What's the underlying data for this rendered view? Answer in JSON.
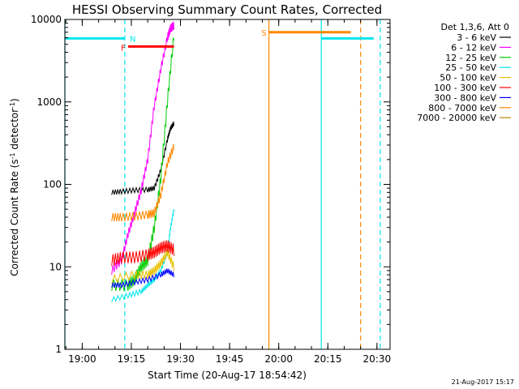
{
  "chart_data": {
    "type": "line",
    "title": "HESSI Observing Summary Count Rates, Corrected",
    "xlabel": "Start Time (20-Aug-17 18:54:42)",
    "ylabel_parts": [
      "Corrected Count Rate (s",
      "-1",
      " detector",
      "-1",
      ")"
    ],
    "yscale": "log",
    "xlim": [
      "18:54:42",
      "20:34:00"
    ],
    "ylim": [
      1,
      10000
    ],
    "x_ticks": [
      "19:00",
      "19:15",
      "19:30",
      "19:45",
      "20:00",
      "20:15",
      "20:30"
    ],
    "y_ticks": [
      "1",
      "10",
      "100",
      "1000",
      "10000"
    ],
    "legend_title": "Det 1,3,6, Att 0",
    "legend_placement": "right, outside plot",
    "series": [
      {
        "name": "3 - 6 keV",
        "color": "#000000",
        "time": [
          "19:09",
          "19:12",
          "19:16",
          "19:20",
          "19:22",
          "19:24",
          "19:26",
          "19:27",
          "19:28"
        ],
        "values": [
          80,
          82,
          85,
          86,
          90,
          150,
          350,
          480,
          550
        ]
      },
      {
        "name": "6 - 12 keV",
        "color": "#ff00ff",
        "time": [
          "19:09",
          "19:12",
          "19:14",
          "19:16",
          "19:18",
          "19:20",
          "19:22",
          "19:24",
          "19:26",
          "19:27",
          "19:28"
        ],
        "values": [
          9,
          12,
          25,
          45,
          85,
          200,
          900,
          2500,
          6000,
          7800,
          8500
        ]
      },
      {
        "name": "12 - 25 keV",
        "color": "#00cc00",
        "time": [
          "19:09",
          "19:14",
          "19:16",
          "19:18",
          "19:20",
          "19:22",
          "19:24",
          "19:26",
          "19:28"
        ],
        "values": [
          6,
          6,
          7,
          10,
          12,
          30,
          120,
          1000,
          6500
        ]
      },
      {
        "name": "25 - 50 keV",
        "color": "#00e5ee",
        "time": [
          "19:09",
          "19:14",
          "19:18",
          "19:20",
          "19:22",
          "19:24",
          "19:26",
          "19:27",
          "19:28"
        ],
        "values": [
          4,
          4.5,
          5,
          6,
          7,
          9,
          15,
          30,
          50
        ]
      },
      {
        "name": "50 - 100 keV",
        "color": "#e8c000",
        "time": [
          "19:09",
          "19:16",
          "19:20",
          "19:22",
          "19:24",
          "19:26",
          "19:28"
        ],
        "values": [
          7,
          8,
          8,
          9,
          11,
          15,
          10
        ]
      },
      {
        "name": "100 - 300 keV",
        "color": "#ff0000",
        "time": [
          "19:09",
          "19:12",
          "19:16",
          "19:20",
          "19:22",
          "19:24",
          "19:26",
          "19:28"
        ],
        "values": [
          12,
          13,
          13,
          14,
          15,
          17,
          18,
          16
        ]
      },
      {
        "name": "300 - 800 keV",
        "color": "#0000ff",
        "time": [
          "19:09",
          "19:12",
          "19:16",
          "19:20",
          "19:24",
          "19:26",
          "19:28"
        ],
        "values": [
          6,
          6,
          6.5,
          7,
          8,
          9,
          8
        ]
      },
      {
        "name": "800 - 7000 keV",
        "color": "#ff8800",
        "time": [
          "19:09",
          "19:12",
          "19:16",
          "19:20",
          "19:22",
          "19:24",
          "19:26",
          "19:28"
        ],
        "values": [
          40,
          40,
          41,
          43,
          45,
          75,
          180,
          290
        ]
      },
      {
        "name": "7000 - 20000 keV",
        "color": "#b8860b",
        "time": [],
        "values": []
      }
    ],
    "flag_bars": [
      {
        "label": "",
        "color": "#00e5ee",
        "start": "18:54:42",
        "end": "19:13",
        "level": 5900
      },
      {
        "label": "N",
        "color": "#00e5ee",
        "start": "",
        "end": "",
        "level": 0
      },
      {
        "label": "F",
        "color": "#ff0000",
        "start": "19:14",
        "end": "19:28",
        "level": 4700
      },
      {
        "label": "S",
        "color": "#ff8800",
        "start": "19:57",
        "end": "20:22",
        "level": 7000
      },
      {
        "label": "",
        "color": "#00e5ee",
        "start": "20:13",
        "end": "20:29",
        "level": 5900
      }
    ],
    "vlines": [
      {
        "time": "18:54:42",
        "color": "#00e5ee",
        "style": "solid"
      },
      {
        "time": "19:13",
        "color": "#00e5ee",
        "style": "dashed"
      },
      {
        "time": "19:57",
        "color": "#ff8800",
        "style": "solid"
      },
      {
        "time": "20:13",
        "color": "#00e5ee",
        "style": "solid"
      },
      {
        "time": "20:25",
        "color": "#ff8800",
        "style": "dashed"
      },
      {
        "time": "20:31",
        "color": "#00e5ee",
        "style": "dashed"
      }
    ],
    "timestamp": "21-Aug-2017 15:17"
  }
}
